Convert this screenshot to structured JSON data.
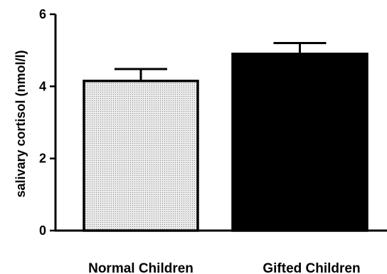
{
  "chart_data": {
    "type": "bar",
    "categories": [
      "Normal Children",
      "Gifted Children"
    ],
    "values": [
      4.15,
      4.9
    ],
    "errors": [
      0.33,
      0.3
    ],
    "ylabel": "salivary cortisol (nmol/l)",
    "xlabel": "",
    "ylim": [
      0,
      6
    ],
    "yticks": [
      "0",
      "2",
      "4",
      "6"
    ],
    "grid": false,
    "bar_fills": [
      "dotted-light-gray",
      "#000000"
    ]
  }
}
